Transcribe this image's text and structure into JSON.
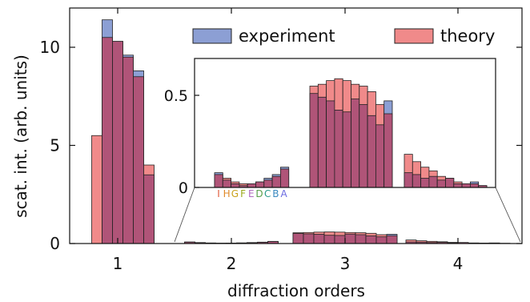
{
  "chart_data": [
    {
      "type": "bar",
      "xlabel": "diffraction orders",
      "ylabel": "scat. int. (arb. units)",
      "xticks": [
        "1",
        "2",
        "3",
        "4"
      ],
      "yticks": [
        "0",
        "5",
        "10"
      ],
      "ylim": [
        0,
        12
      ],
      "grid": false,
      "legend_position": "top-right",
      "series": [
        {
          "name": "experiment",
          "color": "#8c9fd4"
        },
        {
          "name": "theory",
          "color": "#f08a8a"
        }
      ],
      "overlap_color": "#b05478",
      "groups": [
        {
          "order": "1",
          "experiment": [
            0,
            0,
            11.4,
            10.3,
            9.6,
            8.8,
            3.5
          ],
          "theory": [
            0,
            5.5,
            10.5,
            10.3,
            9.5,
            8.5,
            4.0
          ]
        },
        {
          "order": "2",
          "experiment": [
            0.08,
            0.04,
            0.02,
            0.01,
            0.02,
            0.03,
            0.05,
            0.07,
            0.11
          ],
          "theory": [
            0.07,
            0.05,
            0.03,
            0.02,
            0.02,
            0.03,
            0.04,
            0.06,
            0.1
          ]
        },
        {
          "order": "3",
          "experiment": [
            0.51,
            0.49,
            0.47,
            0.42,
            0.41,
            0.48,
            0.45,
            0.39,
            0.34,
            0.47
          ],
          "theory": [
            0.55,
            0.56,
            0.58,
            0.59,
            0.58,
            0.56,
            0.55,
            0.52,
            0.45,
            0.4
          ]
        },
        {
          "order": "4",
          "experiment": [
            0.08,
            0.07,
            0.05,
            0.06,
            0.04,
            0.05,
            0.02,
            0.02,
            0.03,
            0.01
          ],
          "theory": [
            0.18,
            0.14,
            0.11,
            0.09,
            0.06,
            0.05,
            0.03,
            0.02,
            0.02,
            0.01
          ]
        }
      ],
      "inset": {
        "yticks": [
          "0",
          "0.5"
        ],
        "ylim": [
          0,
          0.7
        ],
        "sub_labels": [
          {
            "text": "I",
            "color": "#e05a3a"
          },
          {
            "text": "H",
            "color": "#e08a2a"
          },
          {
            "text": "G",
            "color": "#c9a21a"
          },
          {
            "text": "F",
            "color": "#9aaa1a"
          },
          {
            "text": "E",
            "color": "#b06ac0"
          },
          {
            "text": "D",
            "color": "#5aa04a"
          },
          {
            "text": "C",
            "color": "#2a9a8a"
          },
          {
            "text": "B",
            "color": "#3a8ac0"
          },
          {
            "text": "A",
            "color": "#6a6ae0"
          }
        ]
      }
    }
  ]
}
